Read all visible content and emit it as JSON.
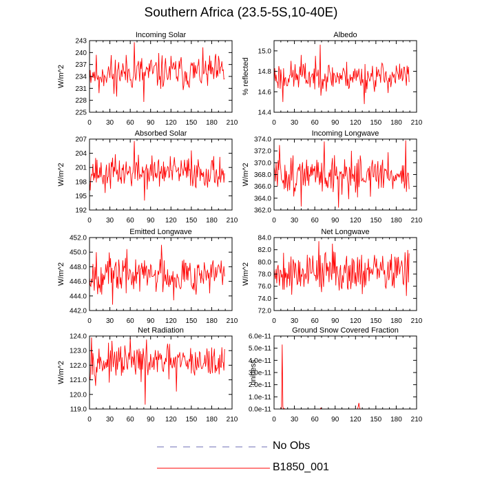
{
  "figure": {
    "title": "Southern Africa (23.5-5S,10-40E)",
    "line_color": "#ff0000",
    "obs_color": "#6b6bb6"
  },
  "legend": {
    "entries": [
      {
        "label": "No Obs",
        "style": "dashed",
        "color": "#6b6bb6"
      },
      {
        "label": "B1850_001",
        "style": "solid",
        "color": "#ff0000"
      }
    ]
  },
  "chart_data": [
    {
      "type": "line",
      "title": "Incoming Solar",
      "ylabel": "W/m^2",
      "xlim": [
        0,
        210
      ],
      "xticks": [
        0,
        30,
        60,
        90,
        120,
        150,
        180,
        210
      ],
      "ylim": [
        225,
        243
      ],
      "yticks": [
        "225",
        "228",
        "231",
        "234",
        "237",
        "240",
        "243"
      ],
      "n": 200,
      "mean": 235,
      "amp": 2.6,
      "seed": 11,
      "events": [
        [
          66,
          242.6
        ],
        [
          80,
          227.6
        ],
        [
          36,
          229.6
        ],
        [
          14,
          229.8
        ]
      ],
      "x": [],
      "values": []
    },
    {
      "type": "line",
      "title": "Albedo",
      "ylabel": "% reflected",
      "xlim": [
        0,
        210
      ],
      "xticks": [
        0,
        30,
        60,
        90,
        120,
        150,
        180,
        210
      ],
      "ylim": [
        14.4,
        15.1
      ],
      "yticks": [
        "14.4",
        "14.6",
        "14.8",
        "15.0"
      ],
      "n": 200,
      "mean": 14.75,
      "amp": 0.085,
      "seed": 23,
      "events": [
        [
          68,
          15.06
        ],
        [
          133,
          14.48
        ],
        [
          13,
          14.5
        ],
        [
          40,
          14.96
        ]
      ],
      "x": [],
      "values": []
    },
    {
      "type": "line",
      "title": "Absorbed Solar",
      "ylabel": "W/m^2",
      "xlim": [
        0,
        210
      ],
      "xticks": [
        0,
        30,
        60,
        90,
        120,
        150,
        180,
        210
      ],
      "ylim": [
        192,
        207
      ],
      "yticks": [
        "192",
        "195",
        "198",
        "201",
        "204",
        "207"
      ],
      "n": 200,
      "mean": 200,
      "amp": 2.0,
      "seed": 37,
      "events": [
        [
          66,
          206.6
        ],
        [
          81,
          194.0
        ],
        [
          23,
          195.6
        ],
        [
          150,
          204.6
        ]
      ],
      "x": [],
      "values": []
    },
    {
      "type": "line",
      "title": "Incoming Longwave",
      "ylabel": "W/m^2",
      "xlim": [
        0,
        210
      ],
      "xticks": [
        0,
        30,
        60,
        90,
        120,
        150,
        180,
        210
      ],
      "ylim": [
        362.0,
        374.0
      ],
      "yticks": [
        "362.0",
        "364.0",
        "366.0",
        "368.0",
        "370.0",
        "372.0",
        "374.0"
      ],
      "n": 200,
      "mean": 368,
      "amp": 1.9,
      "seed": 51,
      "events": [
        [
          74,
          373.6
        ],
        [
          95,
          362.4
        ],
        [
          40,
          362.6
        ],
        [
          194,
          373.8
        ],
        [
          8,
          373.0
        ]
      ],
      "x": [],
      "values": []
    },
    {
      "type": "line",
      "title": "Emitted Longwave",
      "ylabel": "W/m^2",
      "xlim": [
        0,
        210
      ],
      "xticks": [
        0,
        30,
        60,
        90,
        120,
        150,
        180,
        210
      ],
      "ylim": [
        442.0,
        452.0
      ],
      "yticks": [
        "442.0",
        "444.0",
        "446.0",
        "448.0",
        "450.0",
        "452.0"
      ],
      "n": 200,
      "mean": 447,
      "amp": 1.5,
      "seed": 67,
      "events": [
        [
          34,
          442.8
        ],
        [
          106,
          451.0
        ],
        [
          10,
          450.0
        ],
        [
          124,
          443.4
        ]
      ],
      "x": [],
      "values": []
    },
    {
      "type": "line",
      "title": "Net Longwave",
      "ylabel": "W/m^2",
      "xlim": [
        0,
        210
      ],
      "xticks": [
        0,
        30,
        60,
        90,
        120,
        150,
        180,
        210
      ],
      "ylim": [
        72.0,
        84.0
      ],
      "yticks": [
        "72.0",
        "74.0",
        "76.0",
        "78.0",
        "80.0",
        "82.0",
        "84.0"
      ],
      "n": 200,
      "mean": 78.5,
      "amp": 2.0,
      "seed": 79,
      "events": [
        [
          66,
          83.4
        ],
        [
          86,
          83.0
        ],
        [
          26,
          74.6
        ],
        [
          195,
          74.4
        ]
      ],
      "x": [],
      "values": []
    },
    {
      "type": "line",
      "title": "Net Radiation",
      "ylabel": "W/m^2",
      "xlim": [
        0,
        210
      ],
      "xticks": [
        0,
        30,
        60,
        90,
        120,
        150,
        180,
        210
      ],
      "ylim": [
        119.0,
        124.0
      ],
      "yticks": [
        "119.0",
        "120.0",
        "121.0",
        "122.0",
        "123.0",
        "124.0"
      ],
      "n": 200,
      "mean": 122.2,
      "amp": 0.65,
      "seed": 97,
      "events": [
        [
          82,
          119.3
        ],
        [
          60,
          123.9
        ],
        [
          3,
          123.9
        ],
        [
          128,
          120.2
        ]
      ],
      "x": [],
      "values": []
    },
    {
      "type": "line",
      "title": "Ground Snow Covered Fraction",
      "ylabel": "unitless",
      "xlim": [
        0,
        210
      ],
      "xticks": [
        0,
        30,
        60,
        90,
        120,
        150,
        180,
        210
      ],
      "ylim": [
        0,
        6e-11
      ],
      "yticks": [
        "0.0e-11",
        "1.0e-11",
        "2.0e-11",
        "3.0e-11",
        "4.0e-11",
        "5.0e-11",
        "6.0e-11"
      ],
      "x": [
        0,
        11,
        12,
        13,
        14,
        15,
        16,
        20,
        68,
        69,
        70,
        123,
        124,
        125,
        126,
        127,
        200
      ],
      "values": [
        0,
        0,
        5.3e-11,
        2e-12,
        0,
        5e-13,
        0,
        0,
        0,
        8e-13,
        0,
        0,
        2e-12,
        5e-12,
        1e-12,
        0,
        0
      ]
    }
  ]
}
